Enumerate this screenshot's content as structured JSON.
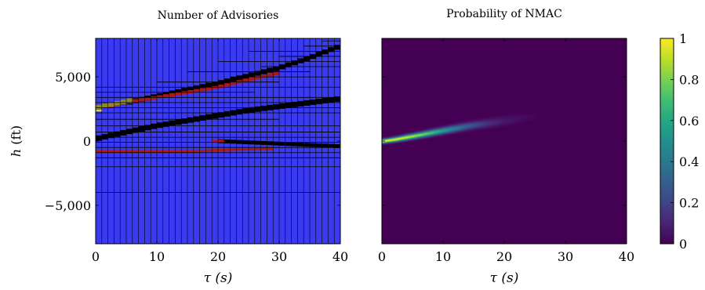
{
  "chart_data": [
    {
      "type": "heatmap",
      "title": "Number of Advisories",
      "xlabel": "τ (s)",
      "ylabel_symbol": "h",
      "ylabel_unit": " (ft)",
      "xlim": [
        0,
        40
      ],
      "ylim": [
        -8000,
        8000
      ],
      "xticks": [
        0,
        10,
        20,
        30,
        40
      ],
      "xtick_labels": [
        "0",
        "10",
        "20",
        "30",
        "40"
      ],
      "yticks": [
        5000,
        0,
        -5000
      ],
      "ytick_labels": [
        "5,000",
        "0",
        "−5,000"
      ],
      "background_color": "#3a3af0",
      "tau_cell_edges": [
        1,
        2,
        3,
        4,
        5,
        6,
        7,
        8,
        9,
        10,
        11,
        12,
        13,
        14,
        15,
        16,
        17,
        18,
        19,
        20,
        21,
        22,
        23,
        24,
        25,
        26,
        27,
        28,
        29,
        30,
        31,
        32,
        33,
        34,
        35,
        36,
        37,
        38,
        39
      ],
      "colors": {
        "black": "#000000",
        "red": "#b01818",
        "olive": "#8a8a2a",
        "yellow": "#d8d050"
      },
      "h_grid_lines": [
        {
          "h": 7800,
          "t0": 37,
          "t1": 40
        },
        {
          "h": 7400,
          "t0": 34,
          "t1": 40
        },
        {
          "h": 7000,
          "t0": 25,
          "t1": 40
        },
        {
          "h": 6600,
          "t0": 30,
          "t1": 40
        },
        {
          "h": 6200,
          "t0": 20,
          "t1": 40
        },
        {
          "h": 5800,
          "t0": 27,
          "t1": 40
        },
        {
          "h": 5400,
          "t0": 15,
          "t1": 35
        },
        {
          "h": 5000,
          "t0": 22,
          "t1": 40
        },
        {
          "h": 4600,
          "t0": 10,
          "t1": 30
        },
        {
          "h": 4200,
          "t0": 0,
          "t1": 40
        },
        {
          "h": 3800,
          "t0": 0,
          "t1": 26
        },
        {
          "h": 3400,
          "t0": 0,
          "t1": 40
        },
        {
          "h": 3000,
          "t0": 0,
          "t1": 40
        },
        {
          "h": 2600,
          "t0": 0,
          "t1": 40
        },
        {
          "h": 2200,
          "t0": 0,
          "t1": 40
        },
        {
          "h": 1700,
          "t0": 0,
          "t1": 30
        },
        {
          "h": 1200,
          "t0": 0,
          "t1": 40
        },
        {
          "h": 700,
          "t0": 0,
          "t1": 40
        },
        {
          "h": 300,
          "t0": 0,
          "t1": 40
        },
        {
          "h": -100,
          "t0": 0,
          "t1": 40
        },
        {
          "h": -500,
          "t0": 0,
          "t1": 40
        },
        {
          "h": -900,
          "t0": 0,
          "t1": 40
        },
        {
          "h": -1300,
          "t0": 0,
          "t1": 40
        },
        {
          "h": -2000,
          "t0": 0,
          "t1": 40
        },
        {
          "h": -4000,
          "t0": 0,
          "t1": 40
        }
      ],
      "bands": [
        {
          "color": "black",
          "thickness": 420,
          "points": [
            [
              0,
              180
            ],
            [
              5,
              700
            ],
            [
              10,
              1200
            ],
            [
              15,
              1600
            ],
            [
              20,
              2000
            ],
            [
              25,
              2400
            ],
            [
              30,
              2700
            ],
            [
              35,
              3000
            ],
            [
              40,
              3300
            ]
          ]
        },
        {
          "color": "black",
          "thickness": 380,
          "points": [
            [
              5,
              3000
            ],
            [
              10,
              3500
            ],
            [
              15,
              4000
            ],
            [
              20,
              4500
            ],
            [
              25,
              5100
            ],
            [
              30,
              5700
            ],
            [
              35,
              6500
            ],
            [
              40,
              7400
            ]
          ]
        },
        {
          "color": "black",
          "thickness": 300,
          "points": [
            [
              20,
              0
            ],
            [
              25,
              -100
            ],
            [
              30,
              -200
            ],
            [
              35,
              -300
            ],
            [
              40,
              -400
            ]
          ]
        },
        {
          "color": "red",
          "thickness": 260,
          "points": [
            [
              2,
              2700
            ],
            [
              6,
              3100
            ],
            [
              10,
              3400
            ],
            [
              15,
              3800
            ],
            [
              20,
              4200
            ],
            [
              25,
              4800
            ],
            [
              30,
              5300
            ]
          ]
        },
        {
          "color": "red",
          "thickness": 180,
          "points": [
            [
              0,
              -800
            ],
            [
              8,
              -800
            ],
            [
              16,
              -800
            ],
            [
              20,
              -700
            ],
            [
              24,
              -650
            ],
            [
              29,
              -600
            ]
          ]
        },
        {
          "color": "red",
          "thickness": 180,
          "points": [
            [
              19,
              -50
            ],
            [
              20,
              60
            ],
            [
              21,
              -30
            ]
          ]
        },
        {
          "color": "olive",
          "thickness": 350,
          "points": [
            [
              0,
              2600
            ],
            [
              2,
              2800
            ],
            [
              4,
              3000
            ],
            [
              6,
              3200
            ]
          ]
        },
        {
          "color": "yellow",
          "thickness": 150,
          "points": [
            [
              0,
              2350
            ],
            [
              1,
              2400
            ]
          ]
        }
      ]
    },
    {
      "type": "heatmap",
      "title": "Probability of NMAC",
      "xlabel": "τ (s)",
      "xlim": [
        0,
        40
      ],
      "ylim": [
        -8000,
        8000
      ],
      "xticks": [
        0,
        10,
        20,
        30,
        40
      ],
      "xtick_labels": [
        "0",
        "10",
        "20",
        "30",
        "40"
      ],
      "yticks": [
        5000,
        0,
        -5000
      ],
      "colormap": "viridis",
      "colorbar": {
        "min": 0,
        "max": 1,
        "ticks": [
          1,
          0.8,
          0.6,
          0.4,
          0.2,
          0
        ],
        "tick_labels": [
          "1",
          "0.8",
          "0.6",
          "0.4",
          "0.2",
          "0"
        ]
      },
      "ridge": [
        {
          "tau": 0,
          "h": 0,
          "p": 1.0,
          "w": 150
        },
        {
          "tau": 2,
          "h": 130,
          "p": 0.98,
          "w": 170
        },
        {
          "tau": 4,
          "h": 300,
          "p": 0.93,
          "w": 190
        },
        {
          "tau": 6,
          "h": 470,
          "p": 0.85,
          "w": 200
        },
        {
          "tau": 8,
          "h": 650,
          "p": 0.72,
          "w": 220
        },
        {
          "tau": 10,
          "h": 830,
          "p": 0.58,
          "w": 230
        },
        {
          "tau": 12,
          "h": 1000,
          "p": 0.42,
          "w": 250
        },
        {
          "tau": 14,
          "h": 1180,
          "p": 0.3,
          "w": 270
        },
        {
          "tau": 16,
          "h": 1320,
          "p": 0.2,
          "w": 290
        },
        {
          "tau": 18,
          "h": 1450,
          "p": 0.12,
          "w": 320
        },
        {
          "tau": 20,
          "h": 1580,
          "p": 0.07,
          "w": 350
        },
        {
          "tau": 23,
          "h": 1800,
          "p": 0.03,
          "w": 400
        },
        {
          "tau": 26,
          "h": 2000,
          "p": 0.01,
          "w": 450
        }
      ]
    }
  ]
}
